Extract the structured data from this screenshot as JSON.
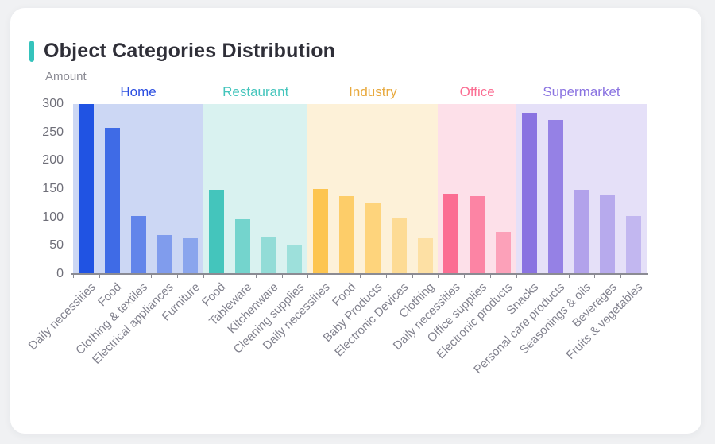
{
  "page": {
    "background_color": "#f0f1f3",
    "card_color": "#ffffff"
  },
  "header": {
    "title": "Object Categories Distribution",
    "accent_color": "#35c3bc"
  },
  "chart_data": {
    "type": "bar",
    "title": "Object Categories Distribution",
    "xlabel": "",
    "ylabel": "Amount",
    "ylim": [
      0,
      300
    ],
    "y_ticks": [
      300,
      250,
      200,
      150,
      100,
      50,
      0
    ],
    "grid": false,
    "legend_position": "none",
    "group_label_row": "colored group names above each background band",
    "groups": [
      {
        "name": "Home",
        "label_color": "#2b4ee0",
        "bar_color": "#2053e3",
        "band_color": "#ccd7f4",
        "categories": [
          "Daily necessities",
          "Food",
          "Clothing & textiles",
          "Electrical appliances",
          "Furniture"
        ],
        "values": [
          300,
          258,
          102,
          68,
          63
        ],
        "bar_opacities": [
          1,
          0.82,
          0.62,
          0.44,
          0.38
        ]
      },
      {
        "name": "Restaurant",
        "label_color": "#44c5bc",
        "bar_color": "#44c5bc",
        "band_color": "#d9f2f0",
        "categories": [
          "Food",
          "Tableware",
          "Kitchenware",
          "Cleaning supplies"
        ],
        "values": [
          148,
          97,
          65,
          51
        ],
        "bar_opacities": [
          1,
          0.68,
          0.48,
          0.4
        ]
      },
      {
        "name": "Industry",
        "label_color": "#e8a93d",
        "bar_color": "#fdc550",
        "band_color": "#fdf1d8",
        "categories": [
          "Daily necessities",
          "Food",
          "Baby Products",
          "Electronic Devices",
          "Clothing"
        ],
        "values": [
          150,
          138,
          126,
          99,
          63
        ],
        "bar_opacities": [
          1,
          0.82,
          0.68,
          0.5,
          0.38
        ]
      },
      {
        "name": "Office",
        "label_color": "#fb6d92",
        "bar_color": "#fb6d92",
        "band_color": "#fde0e9",
        "categories": [
          "Daily necessities",
          "Office supplies",
          "Electronic products"
        ],
        "values": [
          142,
          138,
          75
        ],
        "bar_opacities": [
          1,
          0.8,
          0.55
        ]
      },
      {
        "name": "Supermarket",
        "label_color": "#8a73e1",
        "bar_color": "#8a73e1",
        "band_color": "#e5e0f8",
        "categories": [
          "Snacks",
          "Personal care products",
          "Seasonings & oils",
          "Beverages",
          "Fruits & vegetables"
        ],
        "values": [
          285,
          272,
          148,
          140,
          102
        ],
        "bar_opacities": [
          1,
          0.88,
          0.56,
          0.5,
          0.38
        ]
      }
    ],
    "axis_style": {
      "axis_line_color": "#8b8b93",
      "y_tick_label_color": "#6e6e78",
      "x_tick_label_color": "#82828e",
      "ylabel_color": "#8b8b94"
    }
  }
}
